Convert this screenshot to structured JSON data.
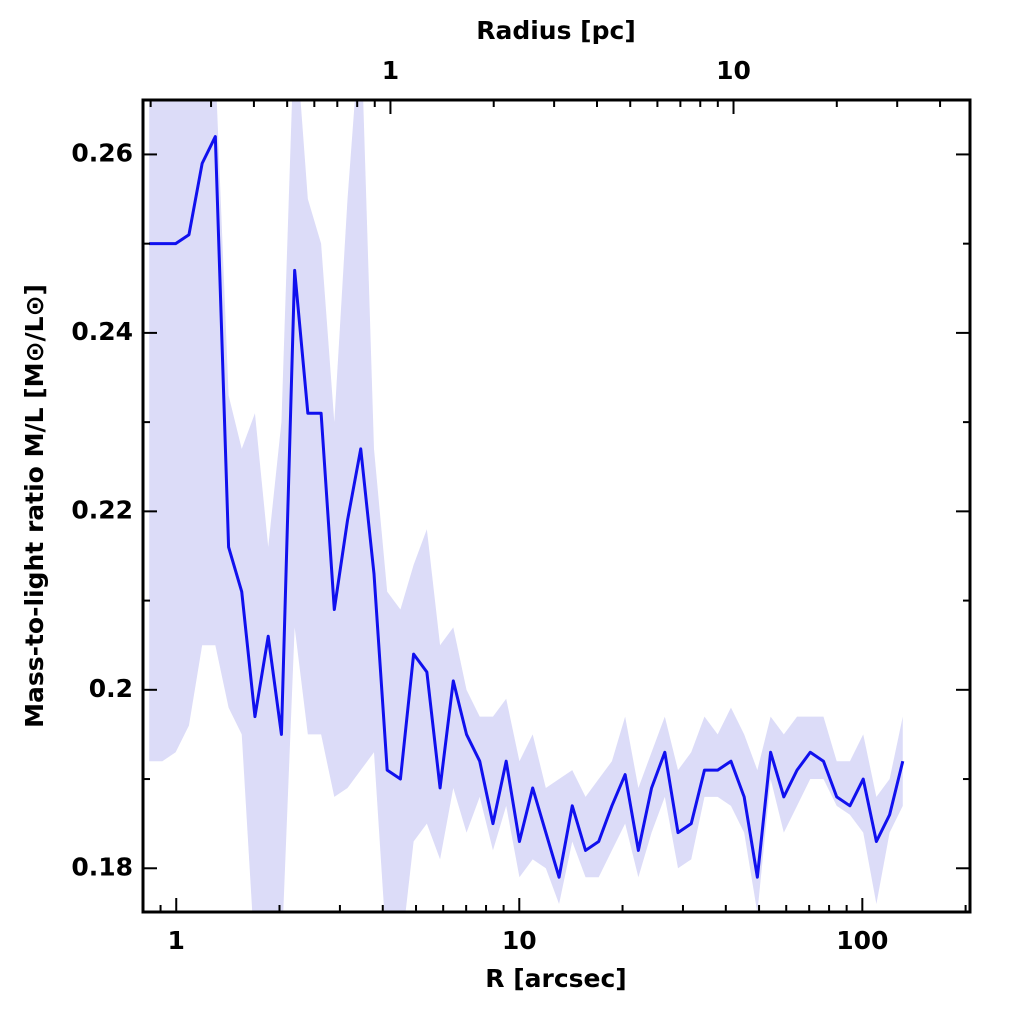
{
  "chart_data": {
    "type": "line",
    "xlabel": "R [arcsec]",
    "ylabel": "Mass-to-light ratio M/L [M⊙/L⊙]",
    "x2label": "Radius [pc]",
    "xscale": "log",
    "xlim": [
      0.8,
      206
    ],
    "xticks": [
      1,
      10,
      100
    ],
    "xminor_ticks": [
      0.9,
      2,
      3,
      4,
      5,
      6,
      7,
      8,
      9,
      20,
      30,
      40,
      50,
      60,
      70,
      80,
      90,
      200
    ],
    "x2lim": [
      0.19,
      48.9
    ],
    "x2ticks": [
      1,
      10
    ],
    "x2minor_ticks": [
      0.2,
      0.3,
      0.4,
      0.5,
      0.6,
      0.7,
      0.8,
      0.9,
      2,
      3,
      4,
      5,
      6,
      7,
      8,
      9,
      20,
      30,
      40
    ],
    "ylim": [
      0.1751,
      0.2661
    ],
    "yticks": [
      0.18,
      0.2,
      0.22,
      0.24,
      0.26
    ],
    "yminor_ticks": [
      0.19,
      0.21,
      0.23,
      0.25
    ],
    "color": "#1010ee",
    "band_color": "#dcdcf8",
    "x": [
      0.834,
      0.911,
      0.996,
      1.089,
      1.19,
      1.3,
      1.421,
      1.552,
      1.696,
      1.854,
      2.026,
      2.214,
      2.419,
      2.644,
      2.889,
      3.157,
      3.45,
      3.771,
      4.12,
      4.503,
      4.92,
      5.377,
      5.876,
      6.421,
      7.018,
      7.668,
      8.38,
      9.158,
      10.01,
      10.94,
      11.95,
      13.06,
      14.27,
      15.6,
      17.04,
      18.62,
      20.35,
      22.24,
      24.3,
      26.56,
      29.02,
      31.71,
      34.66,
      37.87,
      41.4,
      45.24,
      49.43,
      54.03,
      59.04,
      64.52,
      70.5,
      77.04,
      84.2,
      92.0,
      100.6,
      109.9,
      120.1,
      131.2
    ],
    "values": [
      0.25,
      0.25,
      0.25,
      0.251,
      0.259,
      0.262,
      0.216,
      0.211,
      0.197,
      0.206,
      0.195,
      0.247,
      0.231,
      0.231,
      0.209,
      0.219,
      0.227,
      0.213,
      0.191,
      0.19,
      0.204,
      0.202,
      0.189,
      0.201,
      0.195,
      0.192,
      0.185,
      0.192,
      0.183,
      0.189,
      0.184,
      0.179,
      0.187,
      0.182,
      0.183,
      0.187,
      0.1905,
      0.182,
      0.189,
      0.193,
      0.184,
      0.185,
      0.191,
      0.191,
      0.192,
      0.188,
      0.179,
      0.193,
      0.188,
      0.191,
      0.193,
      0.192,
      0.188,
      0.187,
      0.19,
      0.183,
      0.186,
      0.192
    ],
    "upper": [
      0.27,
      0.27,
      0.27,
      0.27,
      0.27,
      0.27,
      0.233,
      0.227,
      0.231,
      0.216,
      0.23,
      0.275,
      0.255,
      0.25,
      0.23,
      0.255,
      0.275,
      0.227,
      0.211,
      0.209,
      0.214,
      0.218,
      0.205,
      0.207,
      0.2,
      0.197,
      0.197,
      0.199,
      0.192,
      0.195,
      0.189,
      0.19,
      0.191,
      0.188,
      0.19,
      0.192,
      0.197,
      0.189,
      0.193,
      0.197,
      0.191,
      0.193,
      0.197,
      0.195,
      0.198,
      0.195,
      0.191,
      0.197,
      0.195,
      0.197,
      0.197,
      0.197,
      0.192,
      0.192,
      0.195,
      0.188,
      0.19,
      0.197
    ],
    "lower": [
      0.192,
      0.192,
      0.193,
      0.196,
      0.205,
      0.205,
      0.198,
      0.195,
      0.17,
      0.17,
      0.17,
      0.207,
      0.195,
      0.195,
      0.188,
      0.189,
      0.191,
      0.193,
      0.17,
      0.17,
      0.183,
      0.185,
      0.181,
      0.189,
      0.184,
      0.188,
      0.182,
      0.187,
      0.179,
      0.181,
      0.18,
      0.176,
      0.183,
      0.179,
      0.179,
      0.182,
      0.185,
      0.179,
      0.184,
      0.188,
      0.18,
      0.181,
      0.188,
      0.188,
      0.187,
      0.184,
      0.175,
      0.19,
      0.184,
      0.187,
      0.19,
      0.19,
      0.187,
      0.186,
      0.184,
      0.176,
      0.184,
      0.187
    ]
  }
}
